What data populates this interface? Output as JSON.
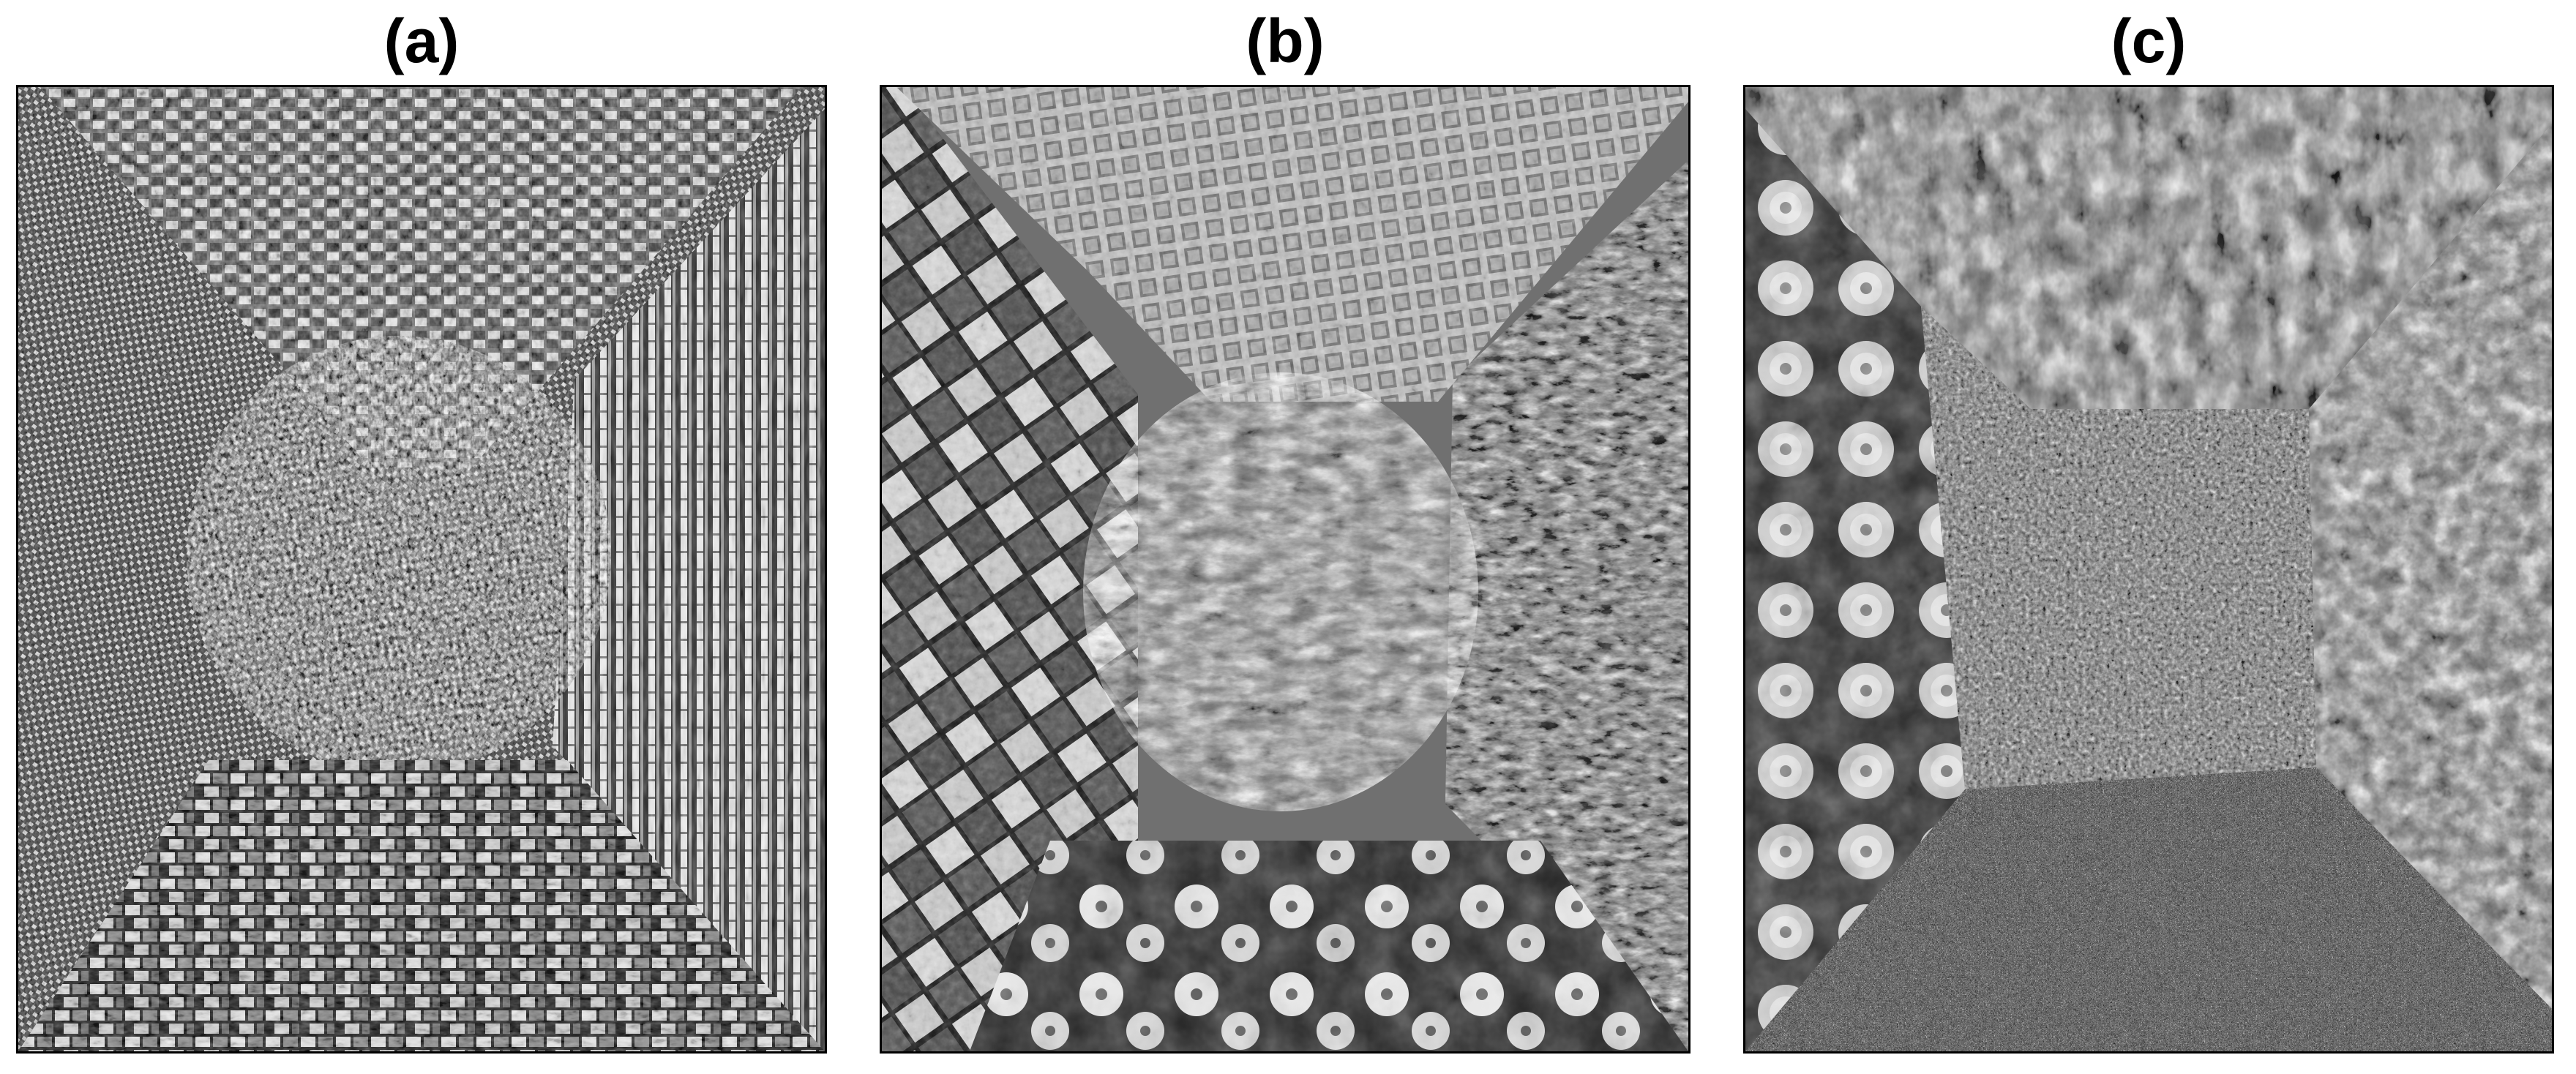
{
  "panels": [
    {
      "label": "(a)",
      "content": "texture-mosaic",
      "regions": [
        "woven-top",
        "weave-left",
        "stripes-right",
        "speckled-center",
        "basketweave-bottom"
      ]
    },
    {
      "label": "(b)",
      "content": "texture-mosaic",
      "regions": [
        "mesh-top",
        "plaited-left",
        "foliage-right",
        "grass-circle",
        "flowers-bottom"
      ]
    },
    {
      "label": "(c)",
      "content": "texture-mosaic",
      "regions": [
        "foliage-top",
        "succulents-left",
        "leaves-right",
        "moss-center",
        "gravel-bottom"
      ]
    }
  ],
  "colors": {
    "background": "#ffffff",
    "frame": "#000000",
    "title": "#000000"
  }
}
